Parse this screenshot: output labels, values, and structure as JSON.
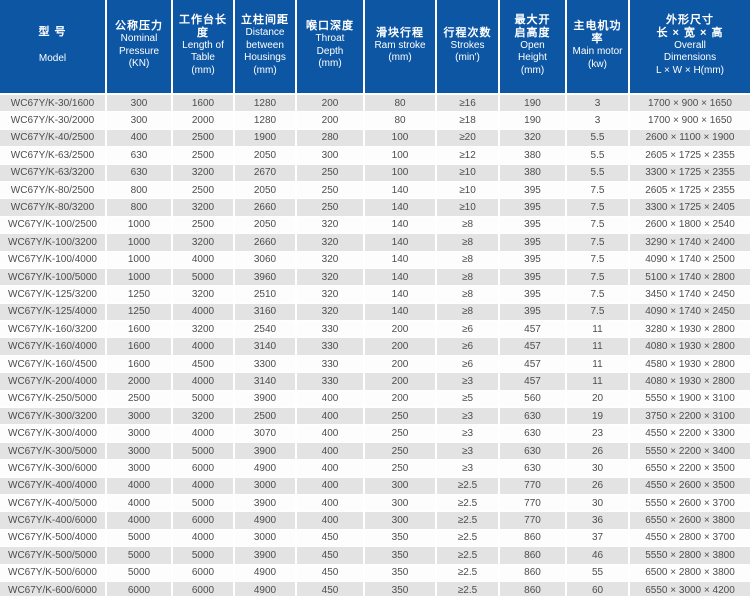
{
  "colors": {
    "header_bg": "#0d56a4",
    "header_text": "#ffffff",
    "row_odd_bg": "#e3e3e3",
    "row_even_bg": "#fdfdfd",
    "body_text": "#4d4d4d",
    "divider": "#ffffff"
  },
  "chart_data": {
    "type": "table",
    "columns": [
      {
        "zh_lines": [
          "型 号"
        ],
        "en_lines": [
          "Model"
        ]
      },
      {
        "zh_lines": [
          "公称压力"
        ],
        "en_lines": [
          "Nominal",
          "Pressure",
          "(KN)"
        ]
      },
      {
        "zh_lines": [
          "工作台长度"
        ],
        "en_lines": [
          "Length of",
          "Table",
          "(mm)"
        ]
      },
      {
        "zh_lines": [
          "立柱间距"
        ],
        "en_lines": [
          "Distance",
          "between",
          "Housings",
          "(mm)"
        ]
      },
      {
        "zh_lines": [
          "喉口深度"
        ],
        "en_lines": [
          "Throat",
          "Depth",
          "(mm)"
        ]
      },
      {
        "zh_lines": [
          "滑块行程"
        ],
        "en_lines": [
          "Ram stroke",
          "(mm)"
        ]
      },
      {
        "zh_lines": [
          "行程次数"
        ],
        "en_lines": [
          "Strokes",
          "(min')"
        ]
      },
      {
        "zh_lines": [
          "最大开",
          "启高度"
        ],
        "en_lines": [
          "Open",
          "Height",
          "(mm)"
        ]
      },
      {
        "zh_lines": [
          "主电机功率"
        ],
        "en_lines": [
          "Main motor",
          "(kw)"
        ]
      },
      {
        "zh_lines": [
          "外形尺寸",
          "长 × 宽 × 高"
        ],
        "en_lines": [
          "Overall",
          "Dimensions",
          "L × W × H(mm)"
        ]
      }
    ],
    "rows": [
      [
        "WC67Y/K-30/1600",
        "300",
        "1600",
        "1280",
        "200",
        "80",
        "≥16",
        "190",
        "3",
        "1700 × 900 × 1650"
      ],
      [
        "WC67Y/K-30/2000",
        "300",
        "2000",
        "1280",
        "200",
        "80",
        "≥18",
        "190",
        "3",
        "1700 × 900 × 1650"
      ],
      [
        "WC67Y/K-40/2500",
        "400",
        "2500",
        "1900",
        "280",
        "100",
        "≥20",
        "320",
        "5.5",
        "2600 × 1100 × 1900"
      ],
      [
        "WC67Y/K-63/2500",
        "630",
        "2500",
        "2050",
        "300",
        "100",
        "≥12",
        "380",
        "5.5",
        "2605 × 1725 × 2355"
      ],
      [
        "WC67Y/K-63/3200",
        "630",
        "3200",
        "2670",
        "250",
        "100",
        "≥10",
        "380",
        "5.5",
        "3300 × 1725 × 2355"
      ],
      [
        "WC67Y/K-80/2500",
        "800",
        "2500",
        "2050",
        "250",
        "140",
        "≥10",
        "395",
        "7.5",
        "2605 × 1725 × 2355"
      ],
      [
        "WC67Y/K-80/3200",
        "800",
        "3200",
        "2660",
        "250",
        "140",
        "≥10",
        "395",
        "7.5",
        "3300 × 1725 × 2405"
      ],
      [
        "WC67Y/K-100/2500",
        "1000",
        "2500",
        "2050",
        "320",
        "140",
        "≥8",
        "395",
        "7.5",
        "2600 × 1800 × 2540"
      ],
      [
        "WC67Y/K-100/3200",
        "1000",
        "3200",
        "2660",
        "320",
        "140",
        "≥8",
        "395",
        "7.5",
        "3290 × 1740 × 2400"
      ],
      [
        "WC67Y/K-100/4000",
        "1000",
        "4000",
        "3060",
        "320",
        "140",
        "≥8",
        "395",
        "7.5",
        "4090 × 1740 × 2500"
      ],
      [
        "WC67Y/K-100/5000",
        "1000",
        "5000",
        "3960",
        "320",
        "140",
        "≥8",
        "395",
        "7.5",
        "5100 × 1740 × 2800"
      ],
      [
        "WC67Y/K-125/3200",
        "1250",
        "3200",
        "2510",
        "320",
        "140",
        "≥8",
        "395",
        "7.5",
        "3450 × 1740 × 2450"
      ],
      [
        "WC67Y/K-125/4000",
        "1250",
        "4000",
        "3160",
        "320",
        "140",
        "≥8",
        "395",
        "7.5",
        "4090 × 1740 × 2450"
      ],
      [
        "WC67Y/K-160/3200",
        "1600",
        "3200",
        "2540",
        "330",
        "200",
        "≥6",
        "457",
        "11",
        "3280 × 1930 × 2800"
      ],
      [
        "WC67Y/K-160/4000",
        "1600",
        "4000",
        "3140",
        "330",
        "200",
        "≥6",
        "457",
        "11",
        "4080 × 1930 × 2800"
      ],
      [
        "WC67Y/K-160/4500",
        "1600",
        "4500",
        "3300",
        "330",
        "200",
        "≥6",
        "457",
        "11",
        "4580 × 1930 × 2800"
      ],
      [
        "WC67Y/K-200/4000",
        "2000",
        "4000",
        "3140",
        "330",
        "200",
        "≥3",
        "457",
        "11",
        "4080 × 1930 × 2800"
      ],
      [
        "WC67Y/K-250/5000",
        "2500",
        "5000",
        "3900",
        "400",
        "200",
        "≥5",
        "560",
        "20",
        "5550 × 1900 × 3100"
      ],
      [
        "WC67Y/K-300/3200",
        "3000",
        "3200",
        "2500",
        "400",
        "250",
        "≥3",
        "630",
        "19",
        "3750 × 2200 × 3100"
      ],
      [
        "WC67Y/K-300/4000",
        "3000",
        "4000",
        "3070",
        "400",
        "250",
        "≥3",
        "630",
        "23",
        "4550 × 2200 × 3300"
      ],
      [
        "WC67Y/K-300/5000",
        "3000",
        "5000",
        "3900",
        "400",
        "250",
        "≥3",
        "630",
        "26",
        "5550 × 2200 × 3400"
      ],
      [
        "WC67Y/K-300/6000",
        "3000",
        "6000",
        "4900",
        "400",
        "250",
        "≥3",
        "630",
        "30",
        "6550 × 2200 × 3500"
      ],
      [
        "WC67Y/K-400/4000",
        "4000",
        "4000",
        "3000",
        "400",
        "300",
        "≥2.5",
        "770",
        "26",
        "4550 × 2600 × 3500"
      ],
      [
        "WC67Y/K-400/5000",
        "4000",
        "5000",
        "3900",
        "400",
        "300",
        "≥2.5",
        "770",
        "30",
        "5550 × 2600 × 3700"
      ],
      [
        "WC67Y/K-400/6000",
        "4000",
        "6000",
        "4900",
        "400",
        "300",
        "≥2.5",
        "770",
        "36",
        "6550 × 2600 × 3800"
      ],
      [
        "WC67Y/K-500/4000",
        "5000",
        "4000",
        "3000",
        "450",
        "350",
        "≥2.5",
        "860",
        "37",
        "4550 × 2800 × 3700"
      ],
      [
        "WC67Y/K-500/5000",
        "5000",
        "5000",
        "3900",
        "450",
        "350",
        "≥2.5",
        "860",
        "46",
        "5550 × 2800 × 3800"
      ],
      [
        "WC67Y/K-500/6000",
        "5000",
        "6000",
        "4900",
        "450",
        "350",
        "≥2.5",
        "860",
        "55",
        "6500 × 2800 × 3800"
      ],
      [
        "WC67Y/K-600/6000",
        "6000",
        "6000",
        "4900",
        "450",
        "350",
        "≥2.5",
        "860",
        "60",
        "6550 × 3000 × 4200"
      ]
    ]
  }
}
